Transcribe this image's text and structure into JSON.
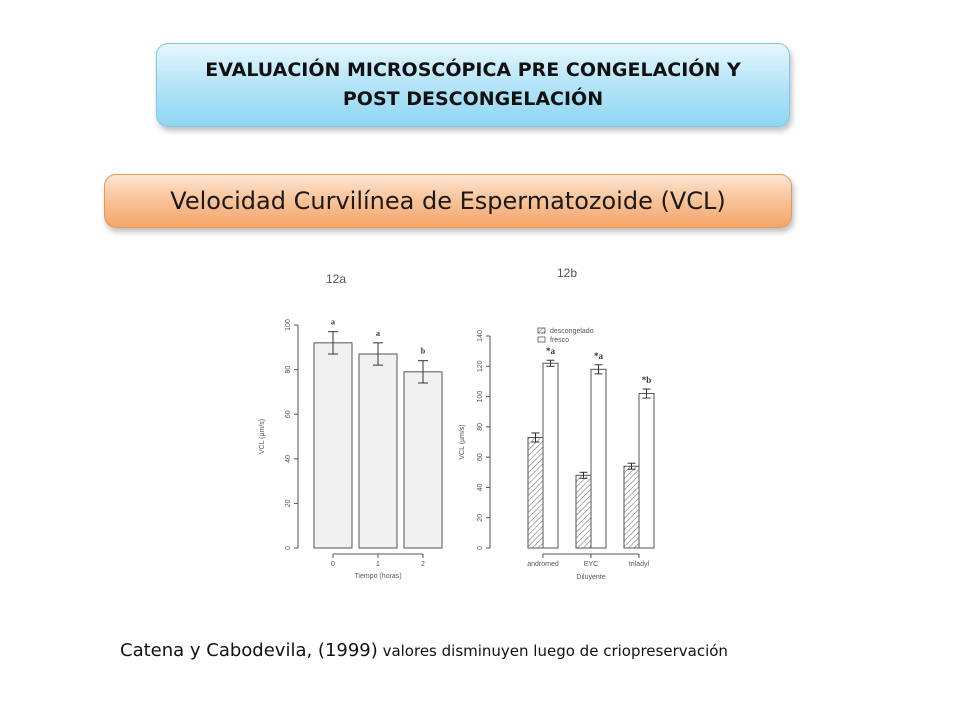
{
  "slide": {
    "title": "EVALUACIÓN MICROSCÓPICA PRE CONGELACIÓN Y POST DESCONGELACIÓN",
    "subtitle": "Velocidad Curvilínea de Espermatozoide (VCL)",
    "fig_a_label": "12a",
    "fig_b_label": "12b",
    "caption_authors": "Catena y Cabodevila, (1999)",
    "caption_text": " valores disminuyen luego de criopreservación"
  },
  "chart_data": [
    {
      "type": "bar",
      "categories": [
        "0",
        "1",
        "2"
      ],
      "values": [
        92,
        87,
        79
      ],
      "errors": [
        5,
        5,
        5
      ],
      "annotations": [
        "a",
        "a",
        "b"
      ],
      "xlabel": "Tiempo (horas)",
      "ylabel": "VCL (µm/s)",
      "ylim": [
        0,
        100
      ],
      "yticks": [
        0,
        20,
        40,
        60,
        80,
        100
      ]
    },
    {
      "type": "bar",
      "categories": [
        "andromed",
        "EYC",
        "triladyl"
      ],
      "series": [
        {
          "name": "descongelado",
          "values": [
            73,
            48,
            54
          ],
          "errors": [
            3,
            2,
            2
          ],
          "pattern": "hatched"
        },
        {
          "name": "fresco",
          "values": [
            122,
            118,
            102
          ],
          "errors": [
            2,
            3,
            3
          ],
          "pattern": "plain"
        }
      ],
      "annotations": [
        "*a",
        "*a",
        "*b"
      ],
      "xlabel": "Diluyente",
      "ylabel": "VCL (µm/s)",
      "ylim": [
        0,
        140
      ],
      "yticks": [
        0,
        20,
        40,
        60,
        80,
        100,
        120,
        140
      ],
      "legend_position": "top-left"
    }
  ]
}
